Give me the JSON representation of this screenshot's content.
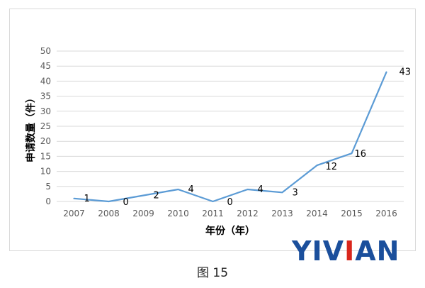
{
  "chart_data": {
    "type": "line",
    "title": "",
    "xlabel": "年份（年）",
    "ylabel": "申请数量（件）",
    "categories": [
      "2007",
      "2008",
      "2009",
      "2010",
      "2011",
      "2012",
      "2013",
      "2014",
      "2015",
      "2016"
    ],
    "series": [
      {
        "values": [
          1,
          0,
          2,
          4,
          0,
          4,
          3,
          12,
          16,
          43
        ],
        "color": "#5b9bd5"
      }
    ],
    "ylim": [
      0,
      50
    ],
    "yticks": [
      0,
      5,
      10,
      15,
      20,
      25,
      30,
      35,
      40,
      45,
      50
    ],
    "grid": true,
    "legend": "none",
    "data_labels": true
  },
  "caption": "图 15",
  "watermark": {
    "text": "YIVIAN",
    "color_primary": "#1b4f9c",
    "color_accent": "#d9261c"
  }
}
